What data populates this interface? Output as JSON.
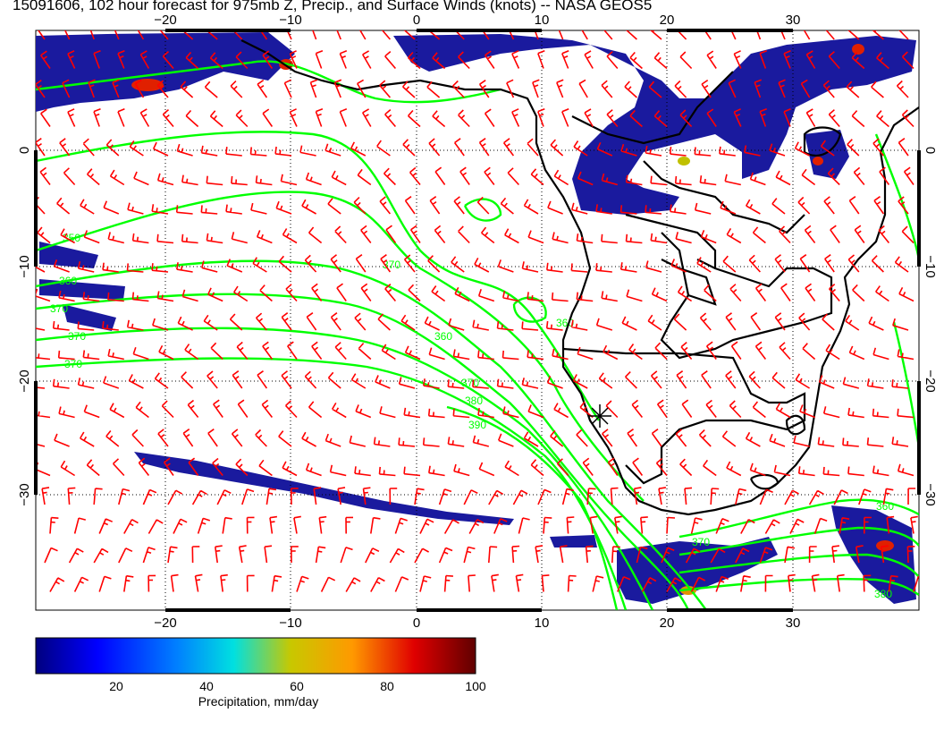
{
  "title": "15091606, 102 hour forecast for 975mb Z, Precip., and Surface Winds (knots) -- NASA GEOS5",
  "map": {
    "lon_ticks": [
      -20,
      -10,
      0,
      10,
      20,
      30
    ],
    "lat_ticks": [
      0,
      -10,
      -20,
      -30
    ],
    "lon_tick_labels": [
      "−20",
      "−10",
      "0",
      "10",
      "20",
      "30"
    ],
    "lat_tick_labels": [
      "0",
      "−10",
      "−20",
      "−30"
    ],
    "extent": {
      "lon": [
        -30,
        40
      ],
      "lat": [
        -40,
        10
      ]
    },
    "height_contour_labels": [
      "350",
      "360",
      "370",
      "380",
      "390"
    ],
    "colors": {
      "wind_barbs": "#ff0000",
      "height_contours": "#00ff00",
      "coastlines": "#000000"
    }
  },
  "colorbar": {
    "ticks": [
      "20",
      "40",
      "60",
      "80",
      "100"
    ],
    "tick_values": [
      20,
      40,
      60,
      80,
      100
    ],
    "range": [
      0,
      100
    ],
    "label": "Precipitation, mm/day",
    "colors": [
      "#00007f",
      "#0000ff",
      "#007fff",
      "#00e0e0",
      "#c8c800",
      "#ff9900",
      "#e00000",
      "#600000"
    ]
  }
}
